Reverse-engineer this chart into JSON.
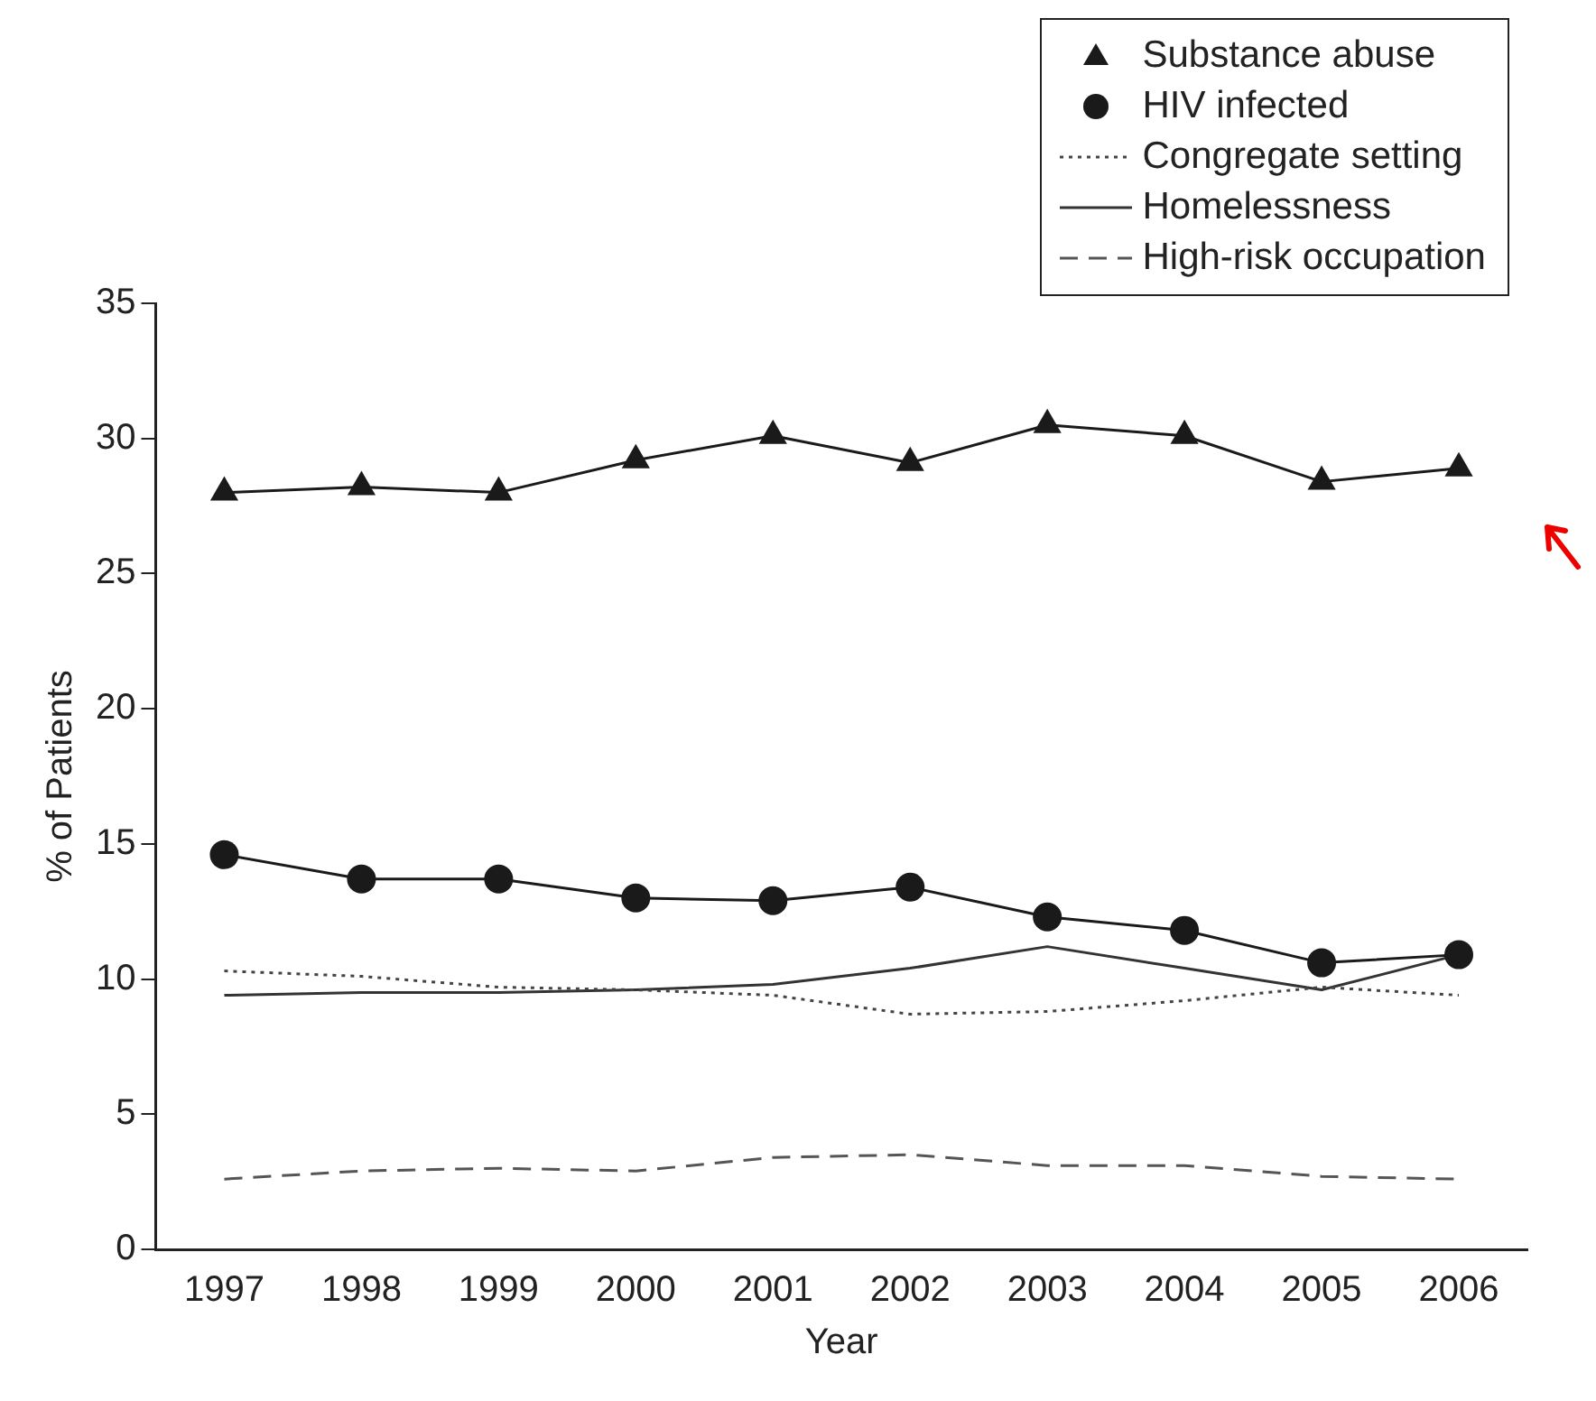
{
  "chart_data": {
    "type": "line",
    "xlabel": "Year",
    "ylabel": "% of Patients",
    "categories": [
      "1997",
      "1998",
      "1999",
      "2000",
      "2001",
      "2002",
      "2003",
      "2004",
      "2005",
      "2006"
    ],
    "series": [
      {
        "name": "Substance abuse",
        "color": "#1a1a1a",
        "marker": "triangle",
        "line_style": "solid",
        "values": [
          28.0,
          28.2,
          28.0,
          29.2,
          30.1,
          29.1,
          30.5,
          30.1,
          28.4,
          28.9
        ]
      },
      {
        "name": "HIV infected",
        "color": "#1a1a1a",
        "marker": "circle",
        "line_style": "solid",
        "values": [
          14.6,
          13.7,
          13.7,
          13.0,
          12.9,
          13.4,
          12.3,
          11.8,
          10.6,
          10.9
        ]
      },
      {
        "name": "Congregate setting",
        "color": "#444444",
        "marker": "none",
        "line_style": "dotted",
        "values": [
          10.3,
          10.1,
          9.7,
          9.6,
          9.4,
          8.7,
          8.8,
          9.2,
          9.7,
          9.4
        ]
      },
      {
        "name": "Homelessness",
        "color": "#333333",
        "marker": "none",
        "line_style": "solid",
        "values": [
          9.4,
          9.5,
          9.5,
          9.6,
          9.8,
          10.4,
          11.2,
          10.4,
          9.6,
          10.9
        ]
      },
      {
        "name": "High-risk occupation",
        "color": "#555555",
        "marker": "none",
        "line_style": "dashed",
        "values": [
          2.6,
          2.9,
          3.0,
          2.9,
          3.4,
          3.5,
          3.1,
          3.1,
          2.7,
          2.6
        ]
      }
    ],
    "ylim": [
      0,
      35
    ],
    "yticks": [
      0,
      5,
      10,
      15,
      20,
      25,
      30,
      35
    ],
    "grid": false,
    "legend": "top right"
  }
}
